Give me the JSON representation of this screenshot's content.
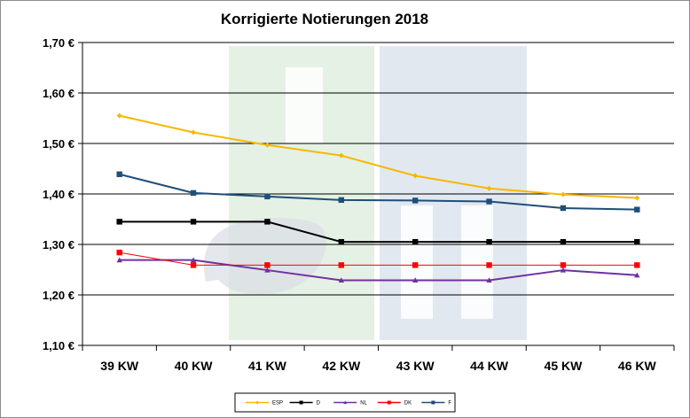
{
  "chart_data": {
    "type": "line",
    "title": "Korrigierte Notierungen 2018",
    "xlabel": "",
    "ylabel": "",
    "categories": [
      "39 KW",
      "40 KW",
      "41 KW",
      "42 KW",
      "43 KW",
      "44 KW",
      "45 KW",
      "46 KW"
    ],
    "ylim": [
      1.1,
      1.7
    ],
    "yticks": [
      1.1,
      1.2,
      1.3,
      1.4,
      1.5,
      1.6,
      1.7
    ],
    "ytick_labels": [
      "1,10 €",
      "1,20 €",
      "1,30 €",
      "1,40 €",
      "1,50 €",
      "1,60 €",
      "1,70 €"
    ],
    "grid": true,
    "legend_position": "bottom",
    "series": [
      {
        "name": "ESP",
        "color": "#f5b800",
        "marker": "diamond",
        "values": [
          1.555,
          1.522,
          1.497,
          1.476,
          1.436,
          1.411,
          1.399,
          1.392
        ]
      },
      {
        "name": "D",
        "color": "#000000",
        "marker": "square",
        "values": [
          1.345,
          1.345,
          1.345,
          1.305,
          1.305,
          1.305,
          1.305,
          1.305
        ]
      },
      {
        "name": "NL",
        "color": "#7030a0",
        "marker": "triangle",
        "values": [
          1.269,
          1.269,
          1.249,
          1.229,
          1.229,
          1.229,
          1.249,
          1.239
        ]
      },
      {
        "name": "DK",
        "color": "#ff0000",
        "marker": "square",
        "values": [
          1.284,
          1.259,
          1.259,
          1.259,
          1.259,
          1.259,
          1.259,
          1.259
        ]
      },
      {
        "name": "F",
        "color": "#1f4e79",
        "marker": "square",
        "values": [
          1.439,
          1.402,
          1.395,
          1.388,
          1.387,
          1.385,
          1.372,
          1.369
        ]
      }
    ]
  }
}
